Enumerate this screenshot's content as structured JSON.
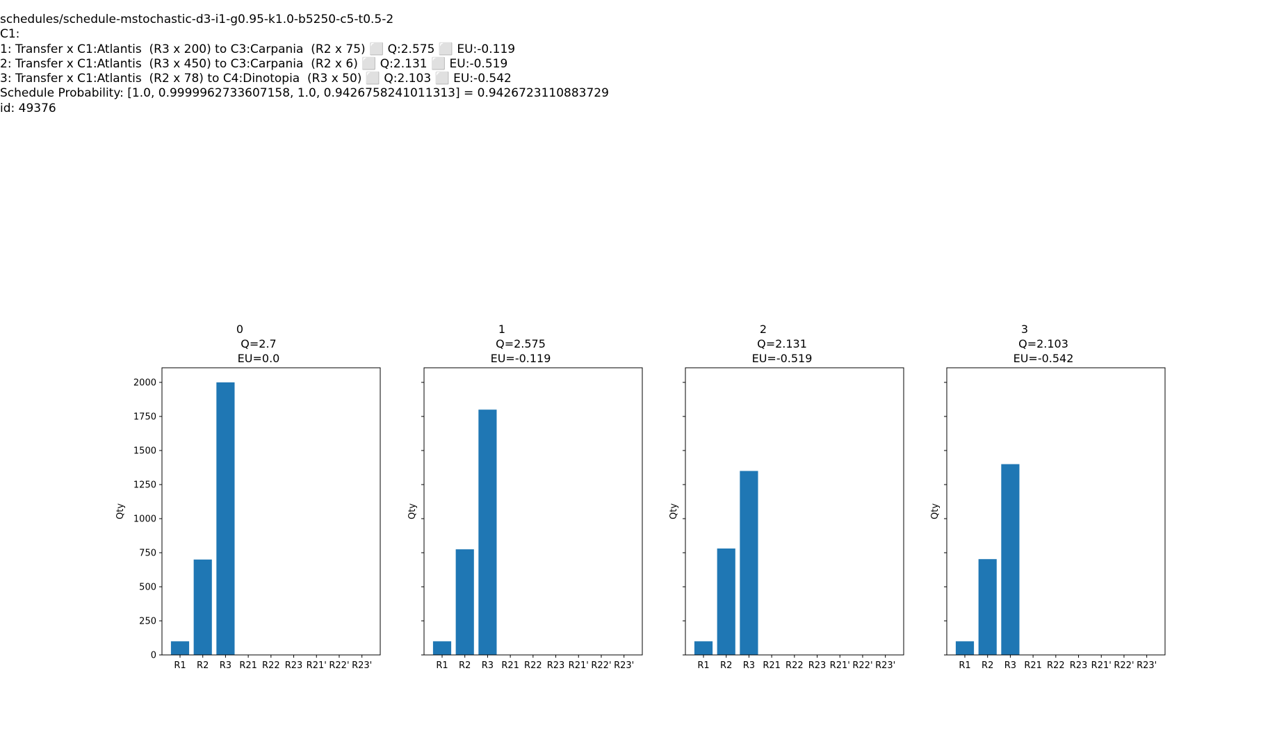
{
  "header_lines": [
    "schedules/schedule-mstochastic-d3-i1-g0.95-k1.0-b5250-c5-t0.5-2",
    "C1:",
    "1: Transfer x C1:Atlantis  (R3 x 200) to C3:Carpania  (R2 x 75) ⬜ Q:2.575 ⬜ EU:-0.119",
    "2: Transfer x C1:Atlantis  (R3 x 450) to C3:Carpania  (R2 x 6) ⬜ Q:2.131 ⬜ EU:-0.519",
    "3: Transfer x C1:Atlantis  (R2 x 78) to C4:Dinotopia  (R3 x 50) ⬜ Q:2.103 ⬜ EU:-0.542",
    "Schedule Probability: [1.0, 0.9999962733607158, 1.0, 0.9426758241011313] = 0.9426723110883729",
    "id: 49376"
  ],
  "chart_data": [
    {
      "type": "bar",
      "title": "0\nQ=2.7\nEU=0.0",
      "title_lines": [
        "0",
        "Q=2.7",
        "EU=0.0"
      ],
      "ylabel": "Qty",
      "ylim": [
        0,
        2100
      ],
      "yticks": [
        0,
        250,
        500,
        750,
        1000,
        1250,
        1500,
        1750,
        2000
      ],
      "show_ytick_labels": true,
      "categories": [
        "R1",
        "R2",
        "R3",
        "R21",
        "R22",
        "R23",
        "R21'",
        "R22'",
        "R23'"
      ],
      "values": [
        100,
        700,
        2000,
        0,
        0,
        0,
        0,
        0,
        0
      ],
      "color": "#1f77b4"
    },
    {
      "type": "bar",
      "title": "1\nQ=2.575\nEU=-0.119",
      "title_lines": [
        "1",
        "Q=2.575",
        "EU=-0.119"
      ],
      "ylabel": "Qty",
      "ylim": [
        0,
        2100
      ],
      "yticks": [
        0,
        250,
        500,
        750,
        1000,
        1250,
        1500,
        1750,
        2000
      ],
      "show_ytick_labels": false,
      "categories": [
        "R1",
        "R2",
        "R3",
        "R21",
        "R22",
        "R23",
        "R21'",
        "R22'",
        "R23'"
      ],
      "values": [
        100,
        775,
        1800,
        0,
        0,
        0,
        0,
        0,
        0
      ],
      "color": "#1f77b4"
    },
    {
      "type": "bar",
      "title": "2\nQ=2.131\nEU=-0.519",
      "title_lines": [
        "2",
        "Q=2.131",
        "EU=-0.519"
      ],
      "ylabel": "Qty",
      "ylim": [
        0,
        2100
      ],
      "yticks": [
        0,
        250,
        500,
        750,
        1000,
        1250,
        1500,
        1750,
        2000
      ],
      "show_ytick_labels": false,
      "categories": [
        "R1",
        "R2",
        "R3",
        "R21",
        "R22",
        "R23",
        "R21'",
        "R22'",
        "R23'"
      ],
      "values": [
        100,
        781,
        1350,
        0,
        0,
        0,
        0,
        0,
        0
      ],
      "color": "#1f77b4"
    },
    {
      "type": "bar",
      "title": "3\nQ=2.103\nEU=-0.542",
      "title_lines": [
        "3",
        "Q=2.103",
        "EU=-0.542"
      ],
      "ylabel": "Qty",
      "ylim": [
        0,
        2100
      ],
      "yticks": [
        0,
        250,
        500,
        750,
        1000,
        1250,
        1500,
        1750,
        2000
      ],
      "show_ytick_labels": false,
      "categories": [
        "R1",
        "R2",
        "R3",
        "R21",
        "R22",
        "R23",
        "R21'",
        "R22'",
        "R23'"
      ],
      "values": [
        100,
        703,
        1400,
        0,
        0,
        0,
        0,
        0,
        0
      ],
      "color": "#1f77b4"
    }
  ]
}
